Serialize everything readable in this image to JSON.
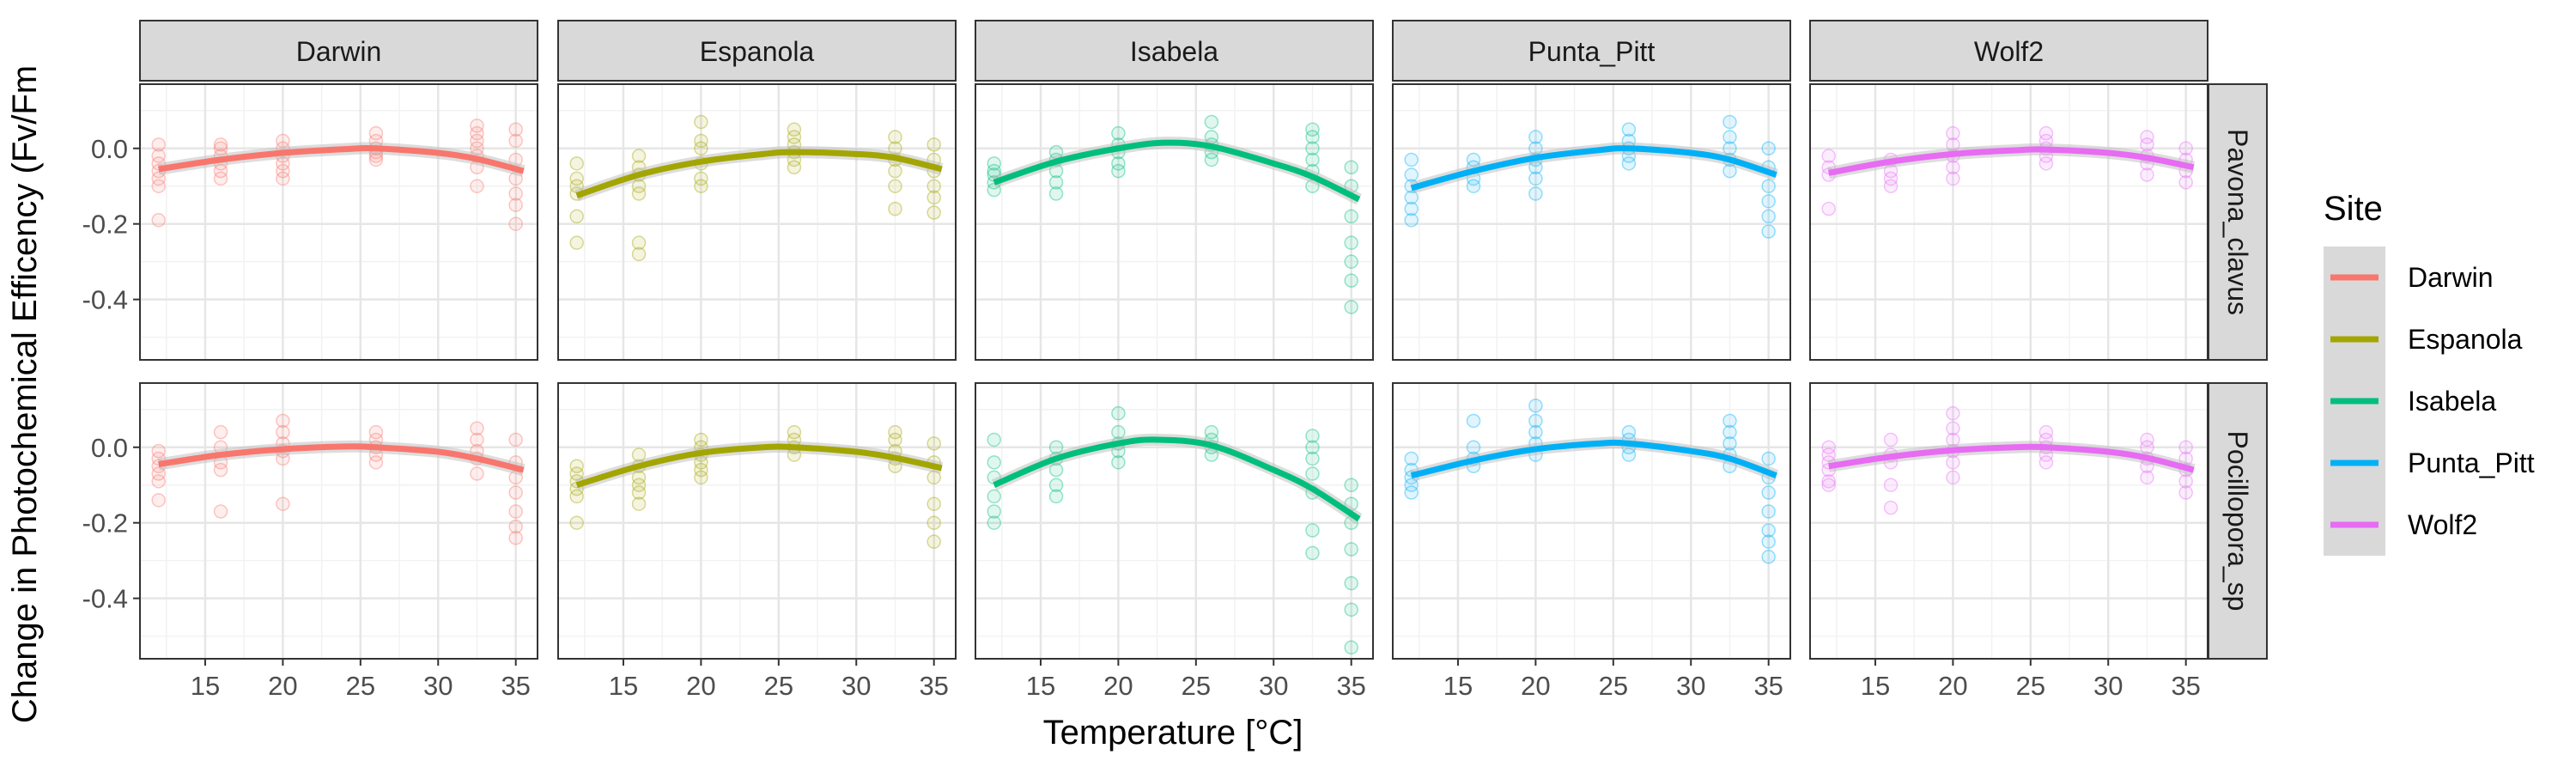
{
  "chart_data": {
    "type": "scatter",
    "xlabel": "Temperature [°C]",
    "ylabel": "Change in Photochemical Efficency (Fv/Fm",
    "xlim": [
      10.8,
      36.4
    ],
    "ylim": [
      -0.56,
      0.17
    ],
    "x_ticks": [
      15,
      20,
      25,
      30,
      35
    ],
    "y_ticks": [
      0.0,
      -0.2,
      -0.4
    ],
    "y_tick_labels": [
      "0.0",
      "-0.2",
      "-0.4"
    ],
    "grid": true,
    "legend_position": "right",
    "legend_title": "Site",
    "sites": [
      "Darwin",
      "Espanola",
      "Isabela",
      "Punta_Pitt",
      "Wolf2"
    ],
    "colors": {
      "Darwin": "#F8766D",
      "Espanola": "#A3A500",
      "Isabela": "#00BF7D",
      "Punta_Pitt": "#00B0F6",
      "Wolf2": "#E76BF3"
    },
    "species": [
      "Pavona_clavus",
      "Pocillopora_sp"
    ],
    "temperatures": [
      12,
      16,
      20,
      26,
      32.5,
      35
    ],
    "fit_lines": {
      "Pavona_clavus": {
        "Darwin": [
          {
            "x": 12,
            "y": -0.055
          },
          {
            "x": 16,
            "y": -0.03
          },
          {
            "x": 20,
            "y": -0.012
          },
          {
            "x": 24,
            "y": -0.002
          },
          {
            "x": 26,
            "y": 0.0
          },
          {
            "x": 30,
            "y": -0.012
          },
          {
            "x": 32.5,
            "y": -0.028
          },
          {
            "x": 35.5,
            "y": -0.06
          }
        ],
        "Espanola": [
          {
            "x": 12,
            "y": -0.125
          },
          {
            "x": 16,
            "y": -0.07
          },
          {
            "x": 20,
            "y": -0.035
          },
          {
            "x": 24,
            "y": -0.015
          },
          {
            "x": 26,
            "y": -0.01
          },
          {
            "x": 30,
            "y": -0.015
          },
          {
            "x": 32.5,
            "y": -0.025
          },
          {
            "x": 35.5,
            "y": -0.055
          }
        ],
        "Isabela": [
          {
            "x": 12,
            "y": -0.09
          },
          {
            "x": 16,
            "y": -0.035
          },
          {
            "x": 20,
            "y": 0.0
          },
          {
            "x": 23,
            "y": 0.015
          },
          {
            "x": 26,
            "y": 0.005
          },
          {
            "x": 30,
            "y": -0.04
          },
          {
            "x": 32.5,
            "y": -0.075
          },
          {
            "x": 35.5,
            "y": -0.135
          }
        ],
        "Punta_Pitt": [
          {
            "x": 12,
            "y": -0.105
          },
          {
            "x": 16,
            "y": -0.06
          },
          {
            "x": 20,
            "y": -0.025
          },
          {
            "x": 24,
            "y": -0.005
          },
          {
            "x": 26,
            "y": 0.0
          },
          {
            "x": 30,
            "y": -0.012
          },
          {
            "x": 32.5,
            "y": -0.03
          },
          {
            "x": 35.5,
            "y": -0.07
          }
        ],
        "Wolf2": [
          {
            "x": 12,
            "y": -0.065
          },
          {
            "x": 16,
            "y": -0.035
          },
          {
            "x": 20,
            "y": -0.015
          },
          {
            "x": 24,
            "y": -0.005
          },
          {
            "x": 26,
            "y": -0.003
          },
          {
            "x": 30,
            "y": -0.012
          },
          {
            "x": 32.5,
            "y": -0.025
          },
          {
            "x": 35.5,
            "y": -0.05
          }
        ]
      },
      "Pocillopora_sp": {
        "Darwin": [
          {
            "x": 12,
            "y": -0.045
          },
          {
            "x": 16,
            "y": -0.02
          },
          {
            "x": 20,
            "y": -0.005
          },
          {
            "x": 24,
            "y": 0.002
          },
          {
            "x": 26,
            "y": 0.0
          },
          {
            "x": 30,
            "y": -0.012
          },
          {
            "x": 32.5,
            "y": -0.03
          },
          {
            "x": 35.5,
            "y": -0.06
          }
        ],
        "Espanola": [
          {
            "x": 12,
            "y": -0.1
          },
          {
            "x": 16,
            "y": -0.05
          },
          {
            "x": 20,
            "y": -0.015
          },
          {
            "x": 24,
            "y": 0.0
          },
          {
            "x": 26,
            "y": 0.0
          },
          {
            "x": 30,
            "y": -0.012
          },
          {
            "x": 32.5,
            "y": -0.028
          },
          {
            "x": 35.5,
            "y": -0.055
          }
        ],
        "Isabela": [
          {
            "x": 12,
            "y": -0.1
          },
          {
            "x": 16,
            "y": -0.03
          },
          {
            "x": 20,
            "y": 0.01
          },
          {
            "x": 22.5,
            "y": 0.02
          },
          {
            "x": 26,
            "y": 0.005
          },
          {
            "x": 30,
            "y": -0.06
          },
          {
            "x": 32.5,
            "y": -0.11
          },
          {
            "x": 35.5,
            "y": -0.19
          }
        ],
        "Punta_Pitt": [
          {
            "x": 12,
            "y": -0.075
          },
          {
            "x": 16,
            "y": -0.035
          },
          {
            "x": 20,
            "y": -0.005
          },
          {
            "x": 24,
            "y": 0.01
          },
          {
            "x": 26,
            "y": 0.01
          },
          {
            "x": 30,
            "y": -0.01
          },
          {
            "x": 32.5,
            "y": -0.03
          },
          {
            "x": 35.5,
            "y": -0.075
          }
        ],
        "Wolf2": [
          {
            "x": 12,
            "y": -0.05
          },
          {
            "x": 16,
            "y": -0.025
          },
          {
            "x": 20,
            "y": -0.008
          },
          {
            "x": 24,
            "y": 0.0
          },
          {
            "x": 26,
            "y": 0.0
          },
          {
            "x": 30,
            "y": -0.012
          },
          {
            "x": 32.5,
            "y": -0.028
          },
          {
            "x": 35.5,
            "y": -0.06
          }
        ]
      }
    },
    "points": {
      "Pavona_clavus": {
        "Darwin": {
          "12": [
            -0.02,
            -0.04,
            -0.06,
            -0.08,
            -0.1,
            -0.19,
            0.01
          ],
          "16": [
            0.0,
            -0.02,
            -0.04,
            -0.06,
            -0.08,
            0.01
          ],
          "20": [
            0.02,
            0.0,
            -0.02,
            -0.04,
            -0.06,
            -0.08
          ],
          "26": [
            0.04,
            0.02,
            0.0,
            -0.01,
            -0.02,
            -0.03
          ],
          "32.5": [
            0.06,
            0.04,
            0.02,
            0.0,
            -0.02,
            -0.05,
            -0.1
          ],
          "35": [
            0.05,
            0.02,
            -0.03,
            -0.08,
            -0.12,
            -0.15,
            -0.2
          ]
        },
        "Espanola": {
          "12": [
            -0.04,
            -0.08,
            -0.1,
            -0.12,
            -0.18,
            -0.25
          ],
          "16": [
            -0.02,
            -0.05,
            -0.07,
            -0.1,
            -0.12,
            -0.25,
            -0.28
          ],
          "20": [
            0.07,
            0.02,
            0.0,
            -0.04,
            -0.08,
            -0.1
          ],
          "26": [
            0.05,
            0.03,
            0.01,
            -0.01,
            -0.03,
            -0.05
          ],
          "32.5": [
            0.03,
            0.0,
            -0.03,
            -0.06,
            -0.1,
            -0.16
          ],
          "35": [
            0.01,
            -0.03,
            -0.06,
            -0.1,
            -0.13,
            -0.17
          ]
        },
        "Isabela": {
          "12": [
            -0.04,
            -0.07,
            -0.09,
            -0.11,
            -0.06
          ],
          "16": [
            -0.01,
            -0.03,
            -0.06,
            -0.09,
            -0.12
          ],
          "20": [
            0.04,
            0.01,
            -0.01,
            -0.04,
            -0.06
          ],
          "26": [
            0.07,
            0.03,
            0.01,
            -0.01,
            -0.03
          ],
          "32.5": [
            0.05,
            0.03,
            0.0,
            -0.03,
            -0.06,
            -0.1
          ],
          "35": [
            -0.05,
            -0.1,
            -0.18,
            -0.25,
            -0.3,
            -0.35,
            -0.42
          ]
        },
        "Punta_Pitt": {
          "12": [
            -0.03,
            -0.07,
            -0.1,
            -0.13,
            -0.16,
            -0.19
          ],
          "16": [
            -0.03,
            -0.05,
            -0.08,
            -0.1
          ],
          "20": [
            0.03,
            0.0,
            -0.03,
            -0.05,
            -0.08,
            -0.12
          ],
          "26": [
            0.05,
            0.02,
            0.0,
            -0.02,
            -0.04
          ],
          "32.5": [
            0.07,
            0.03,
            0.0,
            -0.03,
            -0.06
          ],
          "35": [
            0.0,
            -0.05,
            -0.1,
            -0.14,
            -0.18,
            -0.22
          ]
        },
        "Wolf2": {
          "12": [
            -0.02,
            -0.05,
            -0.07,
            -0.16
          ],
          "16": [
            -0.03,
            -0.06,
            -0.08,
            -0.1
          ],
          "20": [
            0.04,
            0.01,
            -0.02,
            -0.05,
            -0.08
          ],
          "26": [
            0.04,
            0.02,
            0.0,
            -0.02,
            -0.04
          ],
          "32.5": [
            0.03,
            0.01,
            -0.02,
            -0.04,
            -0.07
          ],
          "35": [
            0.0,
            -0.03,
            -0.06,
            -0.09
          ]
        }
      },
      "Pocillopora_sp": {
        "Darwin": {
          "12": [
            -0.01,
            -0.03,
            -0.05,
            -0.07,
            -0.09,
            -0.14
          ],
          "16": [
            0.04,
            0.0,
            -0.04,
            -0.06,
            -0.17
          ],
          "20": [
            0.07,
            0.04,
            0.01,
            -0.01,
            -0.03,
            -0.15
          ],
          "26": [
            0.04,
            0.02,
            0.0,
            -0.02,
            -0.04
          ],
          "32.5": [
            0.05,
            0.02,
            -0.01,
            -0.03,
            -0.07
          ],
          "35": [
            0.02,
            -0.04,
            -0.08,
            -0.12,
            -0.17,
            -0.21,
            -0.24
          ]
        },
        "Espanola": {
          "12": [
            -0.05,
            -0.07,
            -0.09,
            -0.11,
            -0.13,
            -0.2
          ],
          "16": [
            -0.02,
            -0.05,
            -0.08,
            -0.1,
            -0.12,
            -0.15
          ],
          "20": [
            0.02,
            0.0,
            -0.02,
            -0.04,
            -0.06,
            -0.08
          ],
          "26": [
            0.04,
            0.02,
            0.0,
            -0.02
          ],
          "32.5": [
            0.04,
            0.02,
            -0.01,
            -0.03,
            -0.05
          ],
          "35": [
            0.01,
            -0.04,
            -0.08,
            -0.15,
            -0.2,
            -0.25
          ]
        },
        "Isabela": {
          "12": [
            0.02,
            -0.04,
            -0.08,
            -0.13,
            -0.17,
            -0.2
          ],
          "16": [
            0.0,
            -0.03,
            -0.06,
            -0.1,
            -0.13
          ],
          "20": [
            0.09,
            0.04,
            0.01,
            -0.01,
            -0.04
          ],
          "26": [
            0.04,
            0.02,
            0.0,
            -0.02
          ],
          "32.5": [
            0.03,
            0.0,
            -0.03,
            -0.07,
            -0.12,
            -0.22,
            -0.28
          ],
          "35": [
            -0.1,
            -0.15,
            -0.2,
            -0.27,
            -0.36,
            -0.43,
            -0.53
          ]
        },
        "Punta_Pitt": {
          "12": [
            -0.03,
            -0.06,
            -0.08,
            -0.1,
            -0.12
          ],
          "16": [
            0.07,
            0.0,
            -0.03,
            -0.05
          ],
          "20": [
            0.11,
            0.07,
            0.04,
            0.01,
            -0.02
          ],
          "26": [
            0.04,
            0.02,
            0.0,
            -0.02
          ],
          "32.5": [
            0.07,
            0.04,
            0.01,
            -0.02,
            -0.05
          ],
          "35": [
            -0.03,
            -0.08,
            -0.12,
            -0.17,
            -0.22,
            -0.25,
            -0.29
          ]
        },
        "Wolf2": {
          "12": [
            0.0,
            -0.02,
            -0.04,
            -0.06,
            -0.09,
            -0.1
          ],
          "16": [
            0.02,
            -0.02,
            -0.04,
            -0.1,
            -0.16
          ],
          "20": [
            0.09,
            0.05,
            0.02,
            -0.01,
            -0.04,
            -0.08
          ],
          "26": [
            0.04,
            0.02,
            0.0,
            -0.02,
            -0.04
          ],
          "32.5": [
            0.02,
            0.0,
            -0.03,
            -0.05,
            -0.08
          ],
          "35": [
            0.0,
            -0.03,
            -0.06,
            -0.09,
            -0.12
          ]
        }
      }
    }
  }
}
